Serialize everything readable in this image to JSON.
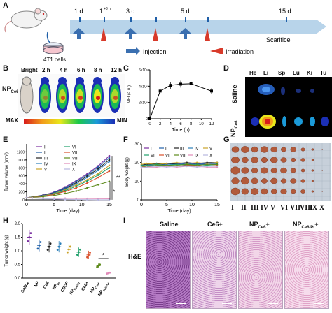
{
  "colors": {
    "arrow": "#b8d4ea",
    "injection": "#3a6fb0",
    "irradiation": "#d83a2a",
    "heat_low": "#1b2fb5",
    "heat_high": "#d81b1b"
  },
  "panelA": {
    "letter": "A",
    "cell_label": "4T1 cells",
    "days": [
      "1 d",
      "1",
      "+8 h",
      "3 d",
      "5 d",
      "15 d"
    ],
    "scarifice": "Scarifice",
    "injection": "Injection",
    "irradiation": "Irradiation"
  },
  "panelB": {
    "letter": "B",
    "group": "NP",
    "group_sub": "Ce6",
    "times": [
      "Bright",
      "2 h",
      "4 h",
      "6 h",
      "8 h",
      "12 h"
    ],
    "max": "MAX",
    "min": "MIN"
  },
  "panelC": {
    "letter": "C"
  },
  "panelD": {
    "letter": "D",
    "organs": [
      "He",
      "Li",
      "Sp",
      "Lu",
      "Ki",
      "Tu"
    ],
    "row1": "Saline",
    "row2": "NP",
    "row2_sub": "Ce6"
  },
  "panelE": {
    "letter": "E",
    "legend": [
      "I",
      "II",
      "III",
      "IV",
      "V",
      "VI",
      "VII",
      "VIII",
      "IX",
      "X"
    ],
    "sig1": "**",
    "sig2": "*"
  },
  "panelF": {
    "letter": "F",
    "legend": [
      "I",
      "II",
      "III",
      "IV",
      "V",
      "VI",
      "VII",
      "VIII",
      "IX",
      "X"
    ]
  },
  "panelG": {
    "letter": "G",
    "labels": [
      "I",
      "II",
      "III",
      "IV",
      "V",
      "VI",
      "VII",
      "VIII",
      "IX",
      "X"
    ]
  },
  "panelH": {
    "letter": "H",
    "sig": "*"
  },
  "panelI": {
    "letter": "I",
    "side_label": "H&E",
    "cols": [
      {
        "t": "Saline",
        "sub": "",
        "post": ""
      },
      {
        "t": "Ce6+",
        "sub": "",
        "post": ""
      },
      {
        "t": "NP",
        "sub": "Ce6",
        "post": "+"
      },
      {
        "t": "NP",
        "sub": "Ce6/Pt",
        "post": "+"
      }
    ]
  },
  "chart_data": [
    {
      "type": "line",
      "panel": "C",
      "title": "",
      "xlabel": "Time (h)",
      "ylabel": "MFI (a.u.)",
      "x": [
        0,
        2,
        4,
        6,
        8,
        12
      ],
      "values": [
        0,
        3400000.0,
        4100000.0,
        4250000.0,
        4300000.0,
        3400000.0
      ],
      "xlim": [
        0,
        12
      ],
      "ylim": [
        0,
        6000000.0
      ],
      "xticks": [
        "0",
        "2",
        "4",
        "6",
        "8",
        "10",
        "12"
      ],
      "yticks": [
        "0",
        "2x10⁶",
        "4x10⁶",
        "6x10⁶"
      ]
    },
    {
      "type": "line",
      "panel": "E",
      "title": "",
      "xlabel": "Time (day)",
      "ylabel": "Tumor volume (mm³)",
      "x": [
        0,
        1,
        3,
        5,
        7,
        9,
        11,
        13,
        15
      ],
      "xlim": [
        0,
        15
      ],
      "ylim": [
        0,
        1400
      ],
      "xticks": [
        "0",
        "5",
        "10",
        "15"
      ],
      "yticks": [
        "0",
        "200",
        "400",
        "600",
        "800",
        "1000",
        "1200"
      ],
      "series": [
        {
          "name": "I",
          "values": [
            55,
            75,
            120,
            190,
            320,
            480,
            650,
            850,
            1100
          ]
        },
        {
          "name": "II",
          "values": [
            55,
            74,
            115,
            180,
            300,
            460,
            620,
            820,
            1050
          ]
        },
        {
          "name": "III",
          "values": [
            55,
            72,
            110,
            170,
            280,
            430,
            590,
            780,
            1000
          ]
        },
        {
          "name": "IV",
          "values": [
            55,
            70,
            105,
            165,
            270,
            400,
            560,
            740,
            960
          ]
        },
        {
          "name": "V",
          "values": [
            55,
            68,
            100,
            155,
            250,
            370,
            500,
            660,
            860
          ]
        },
        {
          "name": "VI",
          "values": [
            55,
            66,
            95,
            145,
            230,
            340,
            470,
            620,
            800
          ]
        },
        {
          "name": "VII",
          "values": [
            55,
            64,
            90,
            135,
            210,
            300,
            420,
            560,
            720
          ]
        },
        {
          "name": "VIII",
          "values": [
            55,
            60,
            80,
            110,
            160,
            220,
            300,
            380,
            460
          ]
        },
        {
          "name": "IX",
          "values": [
            55,
            50,
            45,
            40,
            38,
            35,
            33,
            30,
            28
          ]
        },
        {
          "name": "X",
          "values": [
            55,
            45,
            30,
            20,
            12,
            8,
            5,
            3,
            2
          ]
        }
      ]
    },
    {
      "type": "line",
      "panel": "F",
      "title": "",
      "xlabel": "Time (day)",
      "ylabel": "Body weight (g)",
      "x": [
        0,
        1,
        3,
        5,
        7,
        9,
        11,
        13,
        15
      ],
      "xlim": [
        0,
        15
      ],
      "ylim": [
        0,
        30
      ],
      "xticks": [
        "0",
        "5",
        "10",
        "15"
      ],
      "yticks": [
        "0",
        "10",
        "20",
        "30"
      ],
      "series": [
        {
          "name": "I",
          "values": [
            18,
            18.5,
            19,
            19,
            19.5,
            19,
            19.5,
            19,
            19
          ]
        },
        {
          "name": "II",
          "values": [
            18.5,
            19,
            19,
            19.5,
            19,
            19.5,
            19,
            19.5,
            19.5
          ]
        },
        {
          "name": "III",
          "values": [
            19,
            19,
            19.5,
            19,
            19.5,
            20,
            19.5,
            20,
            20
          ]
        },
        {
          "name": "IV",
          "values": [
            18,
            18.5,
            18.5,
            19,
            19,
            18.5,
            19,
            19,
            19
          ]
        },
        {
          "name": "V",
          "values": [
            19,
            19.5,
            19,
            19.5,
            20,
            19.5,
            20,
            19.5,
            20
          ]
        },
        {
          "name": "VI",
          "values": [
            18.5,
            18.5,
            19,
            18.5,
            19,
            19,
            19,
            18.5,
            19
          ]
        },
        {
          "name": "VII",
          "values": [
            17.5,
            18,
            18,
            18.5,
            18,
            18.5,
            18.5,
            18,
            18.5
          ]
        },
        {
          "name": "VIII",
          "values": [
            18,
            18,
            18.5,
            18.5,
            18.5,
            19,
            18.5,
            19,
            19
          ]
        },
        {
          "name": "IX",
          "values": [
            17,
            17.5,
            17.5,
            18,
            17.5,
            18,
            18,
            17.5,
            17.5
          ]
        },
        {
          "name": "X",
          "values": [
            17.5,
            17.5,
            18,
            17.5,
            18,
            18,
            17.5,
            18,
            18
          ]
        }
      ]
    },
    {
      "type": "scatter",
      "panel": "H",
      "title": "",
      "xlabel": "",
      "ylabel": "Tumor weight (g)",
      "ylim": [
        0,
        2.0
      ],
      "yticks": [
        "0.0",
        "0.5",
        "1.0",
        "1.5",
        "2.0"
      ],
      "categories": [
        "Saline",
        "NP",
        "Ce6",
        "NP",
        "CDDP",
        "NP",
        "Ce6+",
        "NP",
        "NP"
      ],
      "category_subs": [
        "",
        "",
        "",
        "Pt",
        "",
        "Ce6/Pt",
        "",
        "Ce6+",
        "Ce6/Pt+"
      ],
      "values": [
        1.5,
        1.2,
        1.15,
        1.15,
        1.05,
        0.95,
        0.85,
        0.45,
        0.18
      ]
    }
  ]
}
